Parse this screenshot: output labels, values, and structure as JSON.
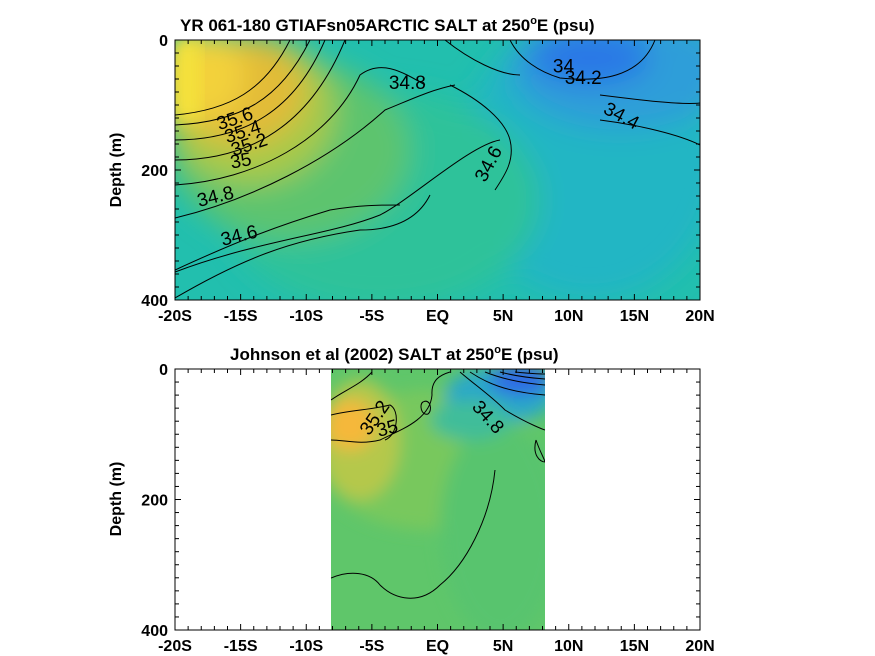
{
  "chart_data": [
    {
      "type": "heatmap",
      "title": "YR 061-180 GTIAFsn05ARCTIC SALT at 250",
      "title_sup": "o",
      "title_suffix": "E (psu)",
      "xlabel": "",
      "ylabel": "Depth (m)",
      "x_tick_labels": [
        "-20S",
        "-15S",
        "-10S",
        "-5S",
        "EQ",
        "5N",
        "10N",
        "15N",
        "20N"
      ],
      "x_range": [
        -20,
        20
      ],
      "y_ticks": [
        0,
        200,
        400
      ],
      "y_range": [
        0,
        400
      ],
      "y_reversed": true,
      "field": "salinity (psu)",
      "contour_labels": [
        {
          "text": "34",
          "lat": 9.6,
          "depth": 50
        },
        {
          "text": "34.2",
          "lat": 11.1,
          "depth": 68
        },
        {
          "text": "34.4",
          "lat": 13.8,
          "depth": 125
        },
        {
          "text": "34.8",
          "lat": -2.3,
          "depth": 75
        },
        {
          "text": "34.6",
          "lat": 4.3,
          "depth": 195
        },
        {
          "text": "35.6",
          "lat": -15.3,
          "depth": 130
        },
        {
          "text": "35.4",
          "lat": -14.7,
          "depth": 150
        },
        {
          "text": "35.2",
          "lat": -14.2,
          "depth": 170
        },
        {
          "text": "35",
          "lat": -14.9,
          "depth": 195
        },
        {
          "text": "34.8",
          "lat": -16.8,
          "depth": 250
        },
        {
          "text": "34.6",
          "lat": -15.0,
          "depth": 310
        }
      ]
    },
    {
      "type": "heatmap",
      "title": "Johnson et al (2002) SALT at 250",
      "title_sup": "o",
      "title_suffix": "E (psu)",
      "xlabel": "",
      "ylabel": "Depth (m)",
      "x_tick_labels": [
        "-20S",
        "-15S",
        "-10S",
        "-5S",
        "EQ",
        "5N",
        "10N",
        "15N",
        "20N"
      ],
      "x_range": [
        -20,
        20
      ],
      "data_lat_range": [
        -8,
        8.5
      ],
      "y_ticks": [
        0,
        200,
        400
      ],
      "y_range": [
        0,
        400
      ],
      "y_reversed": true,
      "field": "salinity (psu)",
      "contour_labels": [
        {
          "text": "35.2",
          "lat": -4.4,
          "depth": 80
        },
        {
          "text": "35",
          "lat": -3.7,
          "depth": 100
        },
        {
          "text": "34.8",
          "lat": 3.5,
          "depth": 80
        }
      ]
    }
  ]
}
